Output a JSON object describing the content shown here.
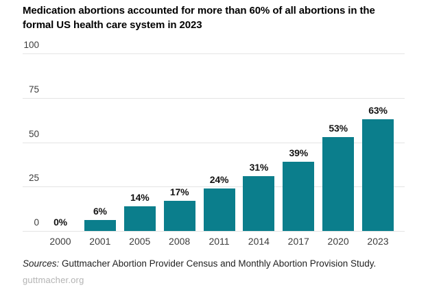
{
  "chart_data": {
    "type": "bar",
    "title": "Medication abortions accounted for more than 60% of all abortions in the formal US health care system in 2023",
    "categories": [
      "2000",
      "2001",
      "2005",
      "2008",
      "2011",
      "2014",
      "2017",
      "2020",
      "2023"
    ],
    "values": [
      0,
      6,
      14,
      17,
      24,
      31,
      39,
      53,
      63
    ],
    "value_labels": [
      "0%",
      "6%",
      "14%",
      "17%",
      "24%",
      "31%",
      "39%",
      "53%",
      "63%"
    ],
    "xlabel": "",
    "ylabel": "",
    "ylim": [
      0,
      100
    ],
    "yticks": [
      0,
      25,
      50,
      75,
      100
    ],
    "grid": true,
    "legend": false,
    "bar_color": "#0b7e8c"
  },
  "footer": {
    "sources_label": "Sources:",
    "sources_text": " Guttmacher Abortion Provider Census and Monthly Abortion Provision Study.",
    "site": "guttmacher.org"
  },
  "colors": {
    "bar": "#0b7e8c",
    "gridline": "#e4e4e4",
    "axis_text": "#3c3c3c",
    "value_label": "#121212",
    "site_text": "#b3b3b3"
  }
}
